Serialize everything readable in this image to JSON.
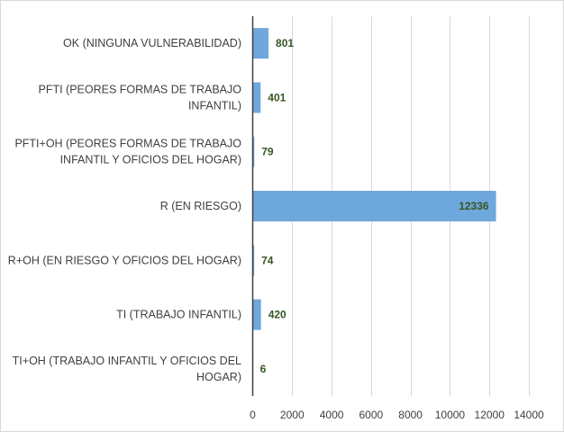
{
  "chart_data": {
    "type": "bar",
    "orientation": "horizontal",
    "title": "",
    "xlabel": "",
    "ylabel": "",
    "categories": [
      [
        "OK (NINGUNA VULNERABILIDAD)"
      ],
      [
        "PFTI (PEORES FORMAS DE TRABAJO",
        "INFANTIL)"
      ],
      [
        "PFTI+OH (PEORES FORMAS DE TRABAJO",
        "INFANTIL Y OFICIOS DEL HOGAR)"
      ],
      [
        "R (EN RIESGO)"
      ],
      [
        "R+OH (EN RIESGO Y OFICIOS DEL HOGAR)"
      ],
      [
        "TI (TRABAJO INFANTIL)"
      ],
      [
        "TI+OH (TRABAJO INFANTIL Y OFICIOS DEL",
        "HOGAR)"
      ]
    ],
    "values": [
      801,
      401,
      79,
      12336,
      74,
      420,
      6
    ],
    "xlim": [
      0,
      14000
    ],
    "xticks": [
      0,
      2000,
      4000,
      6000,
      8000,
      10000,
      12000,
      14000
    ],
    "grid": true,
    "legend": "none",
    "bar_color": "#6fa8dc",
    "data_label_color": "#375623"
  }
}
